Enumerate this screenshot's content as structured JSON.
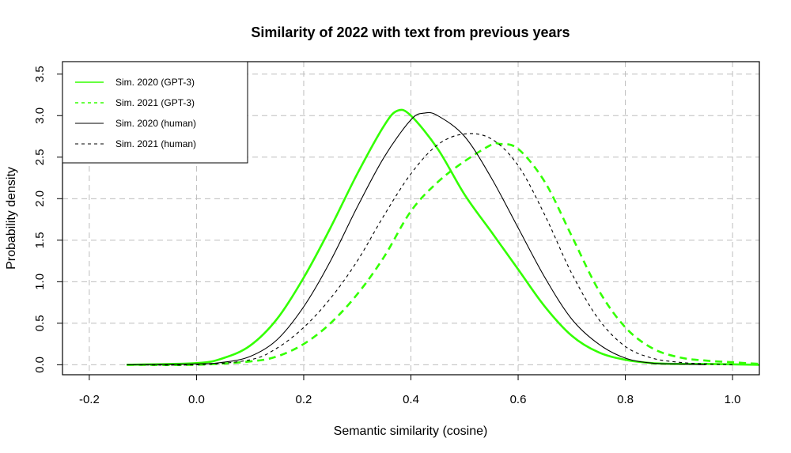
{
  "chart_data": {
    "type": "line",
    "title": "Similarity of 2022 with text from previous years",
    "xlabel": "Semantic similarity (cosine)",
    "ylabel": "Probability density",
    "xlim": [
      -0.25,
      1.05
    ],
    "ylim": [
      -0.12,
      3.65
    ],
    "x_ticks": [
      "-0.2",
      "0.0",
      "0.2",
      "0.4",
      "0.6",
      "0.8",
      "1.0"
    ],
    "y_ticks": [
      "0.0",
      "0.5",
      "1.0",
      "1.5",
      "2.0",
      "2.5",
      "3.0",
      "3.5"
    ],
    "x_tick_values": [
      -0.2,
      0.0,
      0.2,
      0.4,
      0.6,
      0.8,
      1.0
    ],
    "y_tick_values": [
      0.0,
      0.5,
      1.0,
      1.5,
      2.0,
      2.5,
      3.0,
      3.5
    ],
    "grid": true,
    "legend_position": "top-left",
    "series": [
      {
        "name": "Sim. 2020 (GPT-3)",
        "color": "#33ff00",
        "style": "solid",
        "width": "thick",
        "points": [
          [
            -0.13,
            0.0
          ],
          [
            0.0,
            0.02
          ],
          [
            0.05,
            0.08
          ],
          [
            0.1,
            0.23
          ],
          [
            0.15,
            0.55
          ],
          [
            0.2,
            1.05
          ],
          [
            0.25,
            1.65
          ],
          [
            0.3,
            2.3
          ],
          [
            0.35,
            2.88
          ],
          [
            0.375,
            3.06
          ],
          [
            0.4,
            3.0
          ],
          [
            0.45,
            2.6
          ],
          [
            0.5,
            2.05
          ],
          [
            0.55,
            1.6
          ],
          [
            0.6,
            1.15
          ],
          [
            0.65,
            0.7
          ],
          [
            0.7,
            0.35
          ],
          [
            0.75,
            0.15
          ],
          [
            0.8,
            0.06
          ],
          [
            0.85,
            0.02
          ],
          [
            0.9,
            0.01
          ],
          [
            0.95,
            0.01
          ],
          [
            1.05,
            0.0
          ]
        ]
      },
      {
        "name": "Sim. 2021 (GPT-3)",
        "color": "#33ff00",
        "style": "dashed",
        "width": "thick",
        "points": [
          [
            -0.13,
            0.0
          ],
          [
            0.0,
            0.0
          ],
          [
            0.1,
            0.04
          ],
          [
            0.15,
            0.1
          ],
          [
            0.2,
            0.25
          ],
          [
            0.25,
            0.5
          ],
          [
            0.3,
            0.85
          ],
          [
            0.35,
            1.3
          ],
          [
            0.4,
            1.85
          ],
          [
            0.45,
            2.2
          ],
          [
            0.5,
            2.45
          ],
          [
            0.55,
            2.65
          ],
          [
            0.565,
            2.66
          ],
          [
            0.6,
            2.6
          ],
          [
            0.65,
            2.2
          ],
          [
            0.7,
            1.55
          ],
          [
            0.75,
            0.9
          ],
          [
            0.8,
            0.45
          ],
          [
            0.85,
            0.2
          ],
          [
            0.9,
            0.09
          ],
          [
            0.95,
            0.05
          ],
          [
            1.0,
            0.03
          ],
          [
            1.05,
            0.01
          ]
        ]
      },
      {
        "name": "Sim. 2020 (human)",
        "color": "#000000",
        "style": "solid",
        "width": "thin",
        "points": [
          [
            -0.13,
            0.0
          ],
          [
            0.0,
            0.01
          ],
          [
            0.05,
            0.03
          ],
          [
            0.1,
            0.1
          ],
          [
            0.15,
            0.3
          ],
          [
            0.2,
            0.7
          ],
          [
            0.25,
            1.25
          ],
          [
            0.3,
            1.9
          ],
          [
            0.35,
            2.5
          ],
          [
            0.4,
            2.95
          ],
          [
            0.425,
            3.03
          ],
          [
            0.45,
            3.0
          ],
          [
            0.5,
            2.75
          ],
          [
            0.55,
            2.25
          ],
          [
            0.6,
            1.65
          ],
          [
            0.65,
            1.05
          ],
          [
            0.7,
            0.55
          ],
          [
            0.75,
            0.25
          ],
          [
            0.8,
            0.08
          ],
          [
            0.85,
            0.02
          ],
          [
            0.9,
            0.01
          ],
          [
            0.95,
            0.0
          ]
        ]
      },
      {
        "name": "Sim. 2021 (human)",
        "color": "#000000",
        "style": "dashed",
        "width": "thin",
        "points": [
          [
            -0.13,
            0.0
          ],
          [
            0.0,
            0.0
          ],
          [
            0.1,
            0.06
          ],
          [
            0.15,
            0.2
          ],
          [
            0.2,
            0.45
          ],
          [
            0.25,
            0.8
          ],
          [
            0.3,
            1.25
          ],
          [
            0.35,
            1.8
          ],
          [
            0.4,
            2.3
          ],
          [
            0.45,
            2.65
          ],
          [
            0.5,
            2.78
          ],
          [
            0.55,
            2.72
          ],
          [
            0.6,
            2.4
          ],
          [
            0.65,
            1.8
          ],
          [
            0.7,
            1.1
          ],
          [
            0.75,
            0.55
          ],
          [
            0.8,
            0.22
          ],
          [
            0.85,
            0.08
          ],
          [
            0.9,
            0.03
          ],
          [
            0.95,
            0.01
          ],
          [
            1.0,
            0.0
          ]
        ]
      }
    ]
  }
}
